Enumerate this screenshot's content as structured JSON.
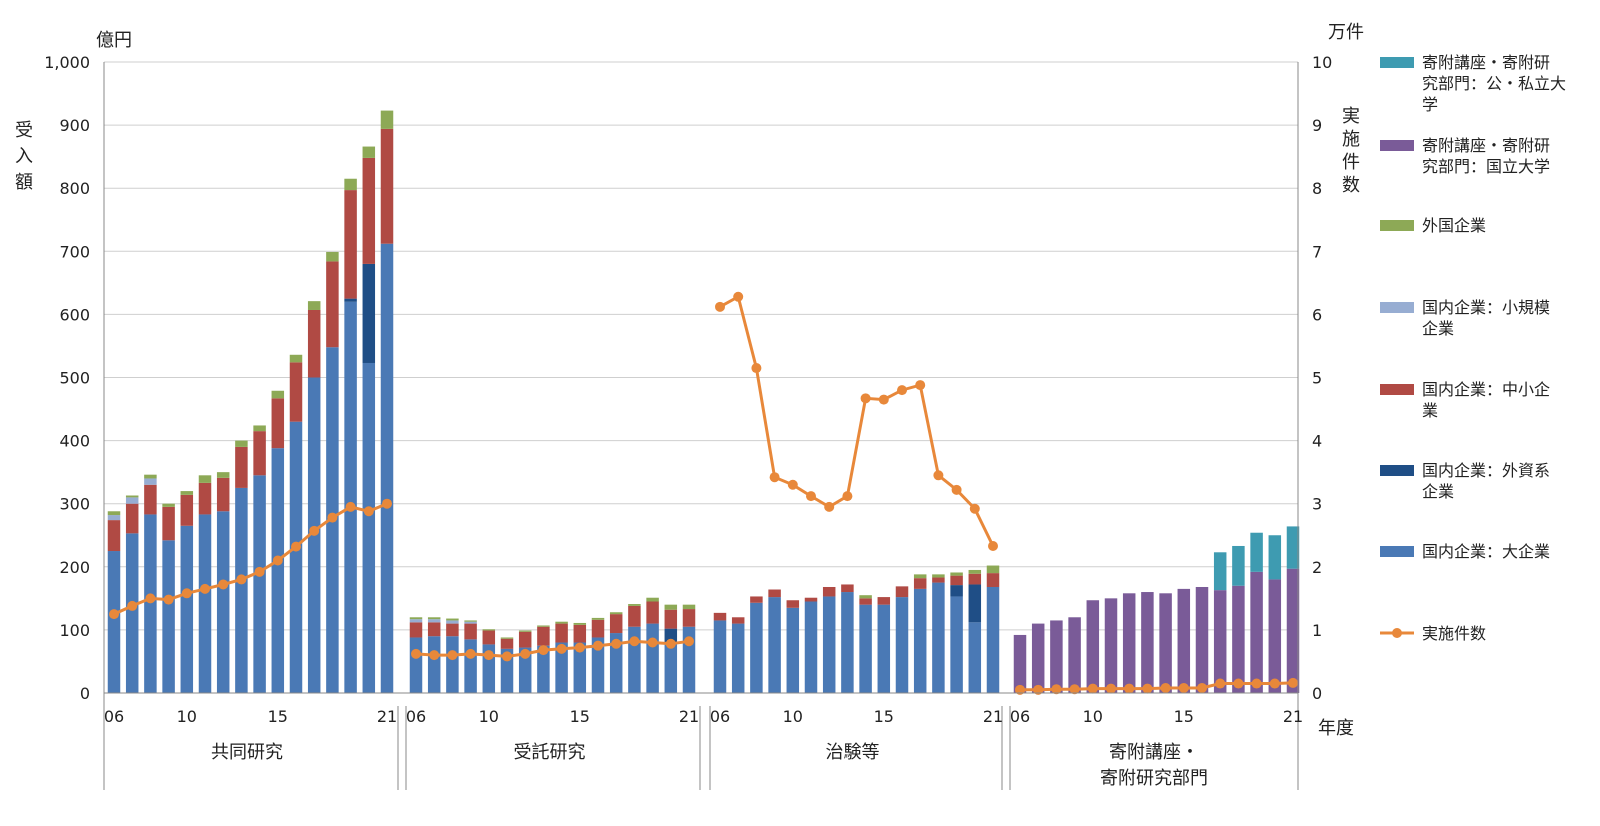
{
  "chart_data": {
    "type": "bar",
    "stacked": true,
    "left_unit": "億円",
    "right_unit": "万件",
    "left_axis_label": [
      "受",
      "入",
      "額"
    ],
    "right_axis_label": [
      "実",
      "施",
      "件",
      "数"
    ],
    "x_unit": "年度",
    "left_ylim": [
      0,
      1000
    ],
    "right_ylim": [
      0,
      10
    ],
    "left_ticks": [
      "0",
      "100",
      "200",
      "300",
      "400",
      "500",
      "600",
      "700",
      "800",
      "900",
      "1,000"
    ],
    "right_ticks": [
      "0",
      "1",
      "2",
      "3",
      "4",
      "5",
      "6",
      "7",
      "8",
      "9",
      "10"
    ],
    "grid": true,
    "legend_position": "right",
    "series": [
      {
        "key": "pub",
        "name": "寄附講座・寄附研究部門：公・私立大学",
        "legend_lines": [
          "寄附講座・寄附研",
          "究部門：公・私立大",
          "学"
        ],
        "color": "#3e9bb1",
        "type": "bar"
      },
      {
        "key": "nat",
        "name": "寄附講座・寄附研究部門：国立大学",
        "legend_lines": [
          "寄附講座・寄附研",
          "究部門：国立大学"
        ],
        "color": "#7a5b98",
        "type": "bar"
      },
      {
        "key": "foreign",
        "name": "外国企業",
        "legend_lines": [
          "外国企業"
        ],
        "color": "#8da956",
        "type": "bar"
      },
      {
        "key": "small",
        "name": "国内企業：小規模企業",
        "legend_lines": [
          "国内企業：小規模",
          "企業"
        ],
        "color": "#97add2",
        "type": "bar"
      },
      {
        "key": "sme",
        "name": "国内企業：中小企業",
        "legend_lines": [
          "国内企業：中小企",
          "業"
        ],
        "color": "#b04a44",
        "type": "bar"
      },
      {
        "key": "fcap",
        "name": "国内企業：外資系企業",
        "legend_lines": [
          "国内企業：外資系",
          "企業"
        ],
        "color": "#1f4e86",
        "type": "bar"
      },
      {
        "key": "large",
        "name": "国内企業：大企業",
        "legend_lines": [
          "国内企業：大企業"
        ],
        "color": "#4a79b5",
        "type": "bar"
      },
      {
        "key": "count",
        "name": "実施件数",
        "legend_lines": [
          "実施件数"
        ],
        "color": "#e8883a",
        "type": "line"
      }
    ],
    "groups": [
      {
        "label": "共同研究",
        "label_lines": [
          "共同研究"
        ],
        "tick_labels": {
          "0": "06",
          "4": "10",
          "9": "15",
          "15": "21"
        },
        "years": [
          "06",
          "07",
          "08",
          "09",
          "10",
          "11",
          "12",
          "13",
          "14",
          "15",
          "16",
          "17",
          "18",
          "19",
          "20",
          "21"
        ],
        "stacks": {
          "large": [
            225,
            253,
            283,
            242,
            265,
            283,
            288,
            325,
            345,
            388,
            430,
            500,
            548,
            620,
            523,
            712
          ],
          "fcap": [
            0,
            0,
            0,
            0,
            0,
            0,
            0,
            0,
            0,
            0,
            0,
            0,
            0,
            5,
            157,
            0
          ],
          "sme": [
            49,
            47,
            47,
            53,
            49,
            50,
            53,
            65,
            70,
            79,
            94,
            107,
            136,
            172,
            168,
            182
          ],
          "small": [
            8,
            10,
            10,
            0,
            0,
            0,
            0,
            0,
            0,
            0,
            0,
            0,
            0,
            0,
            0,
            0
          ],
          "foreign": [
            6,
            3,
            6,
            5,
            6,
            12,
            9,
            10,
            9,
            12,
            12,
            14,
            15,
            18,
            18,
            29
          ]
        },
        "count": [
          1.25,
          1.38,
          1.5,
          1.48,
          1.58,
          1.65,
          1.72,
          1.8,
          1.92,
          2.1,
          2.32,
          2.57,
          2.78,
          2.95,
          2.88,
          3.0
        ]
      },
      {
        "label": "受託研究",
        "label_lines": [
          "受託研究"
        ],
        "tick_labels": {
          "0": "06",
          "4": "10",
          "9": "15",
          "15": "21"
        },
        "years": [
          "06",
          "07",
          "08",
          "09",
          "10",
          "11",
          "12",
          "13",
          "14",
          "15",
          "16",
          "17",
          "18",
          "19",
          "20",
          "21"
        ],
        "stacks": {
          "large": [
            88,
            90,
            90,
            85,
            77,
            70,
            72,
            75,
            80,
            80,
            88,
            95,
            105,
            110,
            80,
            105
          ],
          "fcap": [
            0,
            0,
            0,
            0,
            0,
            0,
            0,
            0,
            0,
            0,
            0,
            0,
            0,
            0,
            22,
            0
          ],
          "sme": [
            24,
            22,
            20,
            25,
            22,
            16,
            25,
            30,
            30,
            28,
            28,
            30,
            33,
            35,
            30,
            28
          ],
          "small": [
            5,
            5,
            5,
            3,
            0,
            0,
            0,
            0,
            0,
            0,
            0,
            0,
            0,
            0,
            0,
            0
          ],
          "foreign": [
            3,
            3,
            3,
            2,
            2,
            2,
            2,
            2,
            3,
            3,
            3,
            3,
            3,
            6,
            8,
            7
          ]
        },
        "count": [
          0.62,
          0.6,
          0.6,
          0.62,
          0.6,
          0.58,
          0.62,
          0.68,
          0.7,
          0.72,
          0.75,
          0.78,
          0.82,
          0.8,
          0.78,
          0.82
        ]
      },
      {
        "label": "治験等",
        "label_lines": [
          "治験等"
        ],
        "tick_labels": {
          "0": "06",
          "4": "10",
          "9": "15",
          "15": "21"
        },
        "years": [
          "06",
          "07",
          "08",
          "09",
          "10",
          "11",
          "12",
          "13",
          "14",
          "15",
          "16",
          "17",
          "18",
          "19",
          "20",
          "21"
        ],
        "stacks": {
          "large": [
            115,
            110,
            143,
            152,
            135,
            145,
            153,
            160,
            140,
            140,
            152,
            165,
            175,
            153,
            112,
            168
          ],
          "fcap": [
            0,
            0,
            0,
            0,
            0,
            0,
            0,
            0,
            0,
            0,
            0,
            0,
            0,
            18,
            60,
            0
          ],
          "sme": [
            12,
            10,
            10,
            12,
            12,
            6,
            15,
            12,
            10,
            12,
            17,
            17,
            8,
            15,
            17,
            22
          ],
          "small": [
            0,
            0,
            0,
            0,
            0,
            0,
            0,
            0,
            0,
            0,
            0,
            0,
            0,
            0,
            0,
            0
          ],
          "foreign": [
            0,
            0,
            0,
            0,
            0,
            0,
            0,
            0,
            5,
            0,
            0,
            6,
            5,
            5,
            6,
            12
          ]
        },
        "count": [
          6.12,
          6.28,
          5.15,
          3.42,
          3.3,
          3.12,
          2.95,
          3.12,
          4.67,
          4.65,
          4.8,
          4.88,
          3.45,
          3.22,
          2.92,
          2.33
        ]
      },
      {
        "label": "寄附講座・寄附研究部門",
        "label_lines": [
          "寄附講座・",
          "寄附研究部門"
        ],
        "tick_labels": {
          "0": "06",
          "4": "10",
          "9": "15",
          "15": "21"
        },
        "years": [
          "06",
          "07",
          "08",
          "09",
          "10",
          "11",
          "12",
          "13",
          "14",
          "15",
          "16",
          "17",
          "18",
          "19",
          "20",
          "21"
        ],
        "stacks": {
          "nat": [
            92,
            110,
            115,
            120,
            147,
            150,
            158,
            160,
            158,
            165,
            168,
            163,
            170,
            192,
            180,
            197
          ],
          "pub": [
            0,
            0,
            0,
            0,
            0,
            0,
            0,
            0,
            0,
            0,
            0,
            60,
            63,
            62,
            70,
            67
          ]
        },
        "count": [
          0.05,
          0.05,
          0.06,
          0.06,
          0.07,
          0.07,
          0.07,
          0.07,
          0.08,
          0.08,
          0.08,
          0.15,
          0.15,
          0.15,
          0.15,
          0.16
        ]
      }
    ]
  }
}
